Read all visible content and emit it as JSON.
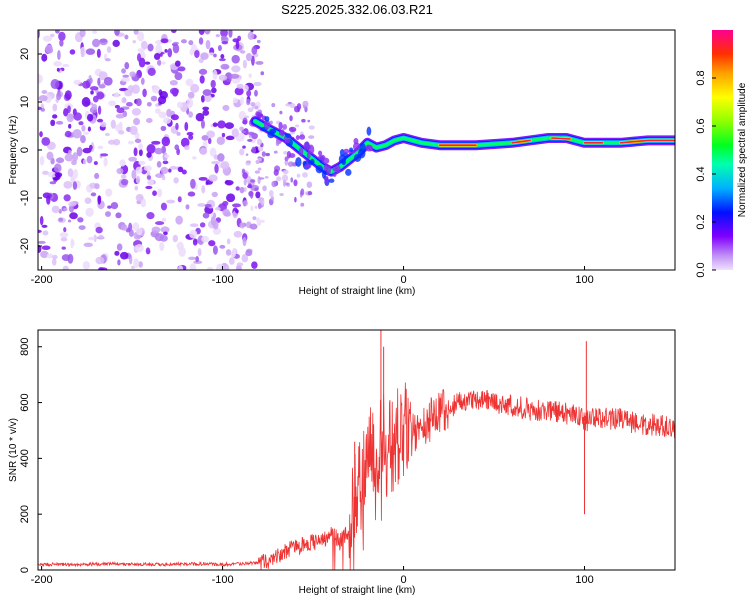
{
  "title": "S225.2025.332.06.03.R21",
  "chart_data": [
    {
      "type": "heatmap",
      "name": "spectrogram",
      "xlabel": "Height of straight line (km)",
      "ylabel": "Frequency (Hz)",
      "xlim": [
        -202,
        150
      ],
      "ylim": [
        -25,
        25
      ],
      "xticks": [
        -200,
        -100,
        0,
        100
      ],
      "yticks": [
        -20,
        -10,
        0,
        10,
        20
      ],
      "colorbar": {
        "label": "Normalized spectral amplitude",
        "range": [
          0,
          1
        ],
        "ticks": [
          "0.0",
          "0.2",
          "0.4",
          "0.6",
          "0.8"
        ],
        "colors": [
          "#e8d4f8",
          "#b070f0",
          "#7a00ff",
          "#0000ff",
          "#00bfff",
          "#00ffa0",
          "#00ff00",
          "#b0ff00",
          "#ffff00",
          "#ffa000",
          "#ff3000",
          "#ff0090"
        ]
      },
      "noise_region_km": [
        -202,
        -82
      ],
      "ridge": {
        "x": [
          -82,
          -75,
          -70,
          -65,
          -60,
          -55,
          -50,
          -45,
          -40,
          -35,
          -30,
          -25,
          -20,
          -15,
          -10,
          -5,
          0,
          5,
          10,
          20,
          40,
          60,
          70,
          80,
          90,
          95,
          100,
          110,
          120,
          135,
          150
        ],
        "freq_hz": [
          6,
          4.5,
          3.5,
          2.5,
          1,
          -0.5,
          -2,
          -3.5,
          -4.5,
          -3.5,
          -2,
          -0.5,
          1.5,
          0.5,
          1,
          2,
          2.5,
          2,
          1.5,
          1,
          1,
          1.5,
          2,
          2.5,
          2.5,
          2,
          1.5,
          1.5,
          1.5,
          2,
          2
        ]
      }
    },
    {
      "type": "line",
      "name": "snr",
      "xlabel": "Height of straight line (km)",
      "ylabel": "SNR (10 * v/v)",
      "xlim": [
        -202,
        150
      ],
      "ylim": [
        0,
        860
      ],
      "xticks": [
        -200,
        -100,
        0,
        100
      ],
      "yticks": [
        0,
        200,
        400,
        600,
        800
      ],
      "color": "#ee3333",
      "series": [
        {
          "name": "SNR",
          "x": [
            -202,
            -180,
            -160,
            -140,
            -120,
            -100,
            -90,
            -80,
            -75,
            -70,
            -65,
            -60,
            -55,
            -50,
            -45,
            -40,
            -35,
            -30,
            -28,
            -25,
            -22,
            -20,
            -18,
            -15,
            -13,
            -11,
            -10,
            -8,
            -5,
            -2,
            0,
            5,
            10,
            15,
            20,
            25,
            30,
            35,
            40,
            45,
            50,
            60,
            70,
            80,
            90,
            98,
            100,
            102,
            110,
            120,
            130,
            140,
            150
          ],
          "y": [
            20,
            20,
            22,
            20,
            22,
            20,
            22,
            25,
            30,
            50,
            70,
            80,
            90,
            100,
            100,
            130,
            110,
            140,
            200,
            300,
            330,
            360,
            430,
            450,
            480,
            500,
            410,
            440,
            460,
            480,
            490,
            500,
            510,
            540,
            560,
            580,
            600,
            605,
            610,
            610,
            600,
            590,
            575,
            570,
            560,
            550,
            530,
            540,
            545,
            540,
            525,
            520,
            510
          ]
        }
      ],
      "spikes": [
        {
          "x": -12.5,
          "y": 860
        },
        {
          "x": -11,
          "y": 800
        },
        {
          "x": -27,
          "y": 460
        },
        {
          "x": 100,
          "y": 200
        },
        {
          "x": 101,
          "y": 820
        }
      ]
    }
  ]
}
